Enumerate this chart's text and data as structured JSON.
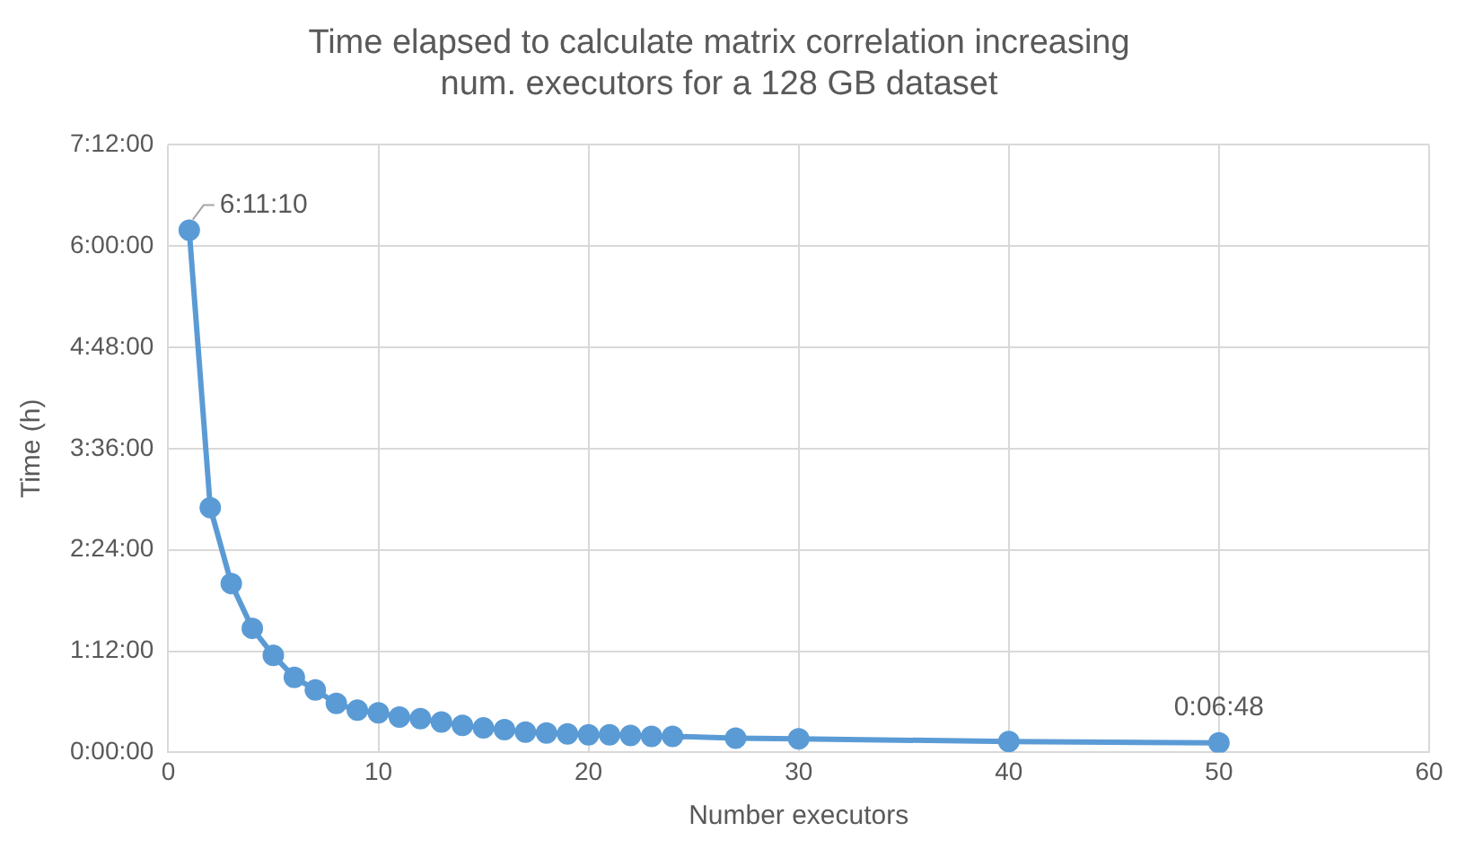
{
  "chart_data": {
    "type": "line",
    "title": "Time elapsed to calculate matrix correlation increasing num. executors for a 128 GB dataset",
    "xlabel": "Number executors",
    "ylabel": "Time (h)",
    "x": [
      1,
      2,
      3,
      4,
      5,
      6,
      7,
      8,
      9,
      10,
      11,
      12,
      13,
      14,
      15,
      16,
      17,
      18,
      19,
      20,
      21,
      22,
      23,
      24,
      27,
      30,
      40,
      50
    ],
    "series": [
      {
        "color": "#5b9bd5",
        "values": [
          6.186,
          2.9,
          2.0,
          1.47,
          1.15,
          0.89,
          0.74,
          0.58,
          0.5,
          0.47,
          0.42,
          0.4,
          0.36,
          0.32,
          0.29,
          0.27,
          0.24,
          0.23,
          0.22,
          0.21,
          0.21,
          0.2,
          0.19,
          0.19,
          0.17,
          0.16,
          0.13,
          0.113
        ]
      }
    ],
    "xlim": [
      0,
      60
    ],
    "xticks": [
      0,
      10,
      20,
      30,
      40,
      50,
      60
    ],
    "ylim": [
      0,
      7.2
    ],
    "yticks": [
      {
        "value": 0,
        "label": "0:00:00"
      },
      {
        "value": 1.2,
        "label": "1:12:00"
      },
      {
        "value": 2.4,
        "label": "2:24:00"
      },
      {
        "value": 3.6,
        "label": "3:36:00"
      },
      {
        "value": 4.8,
        "label": "4:48:00"
      },
      {
        "value": 6,
        "label": "6:00:00"
      },
      {
        "value": 7.2,
        "label": "7:12:00"
      }
    ],
    "annotations": [
      {
        "text": "6:11:10",
        "x": 1,
        "y": 6.186
      },
      {
        "text": "0:06:48",
        "x": 50,
        "y": 0.113
      }
    ],
    "grid": true,
    "legend": false,
    "marker": "circle",
    "line_style": "solid"
  }
}
